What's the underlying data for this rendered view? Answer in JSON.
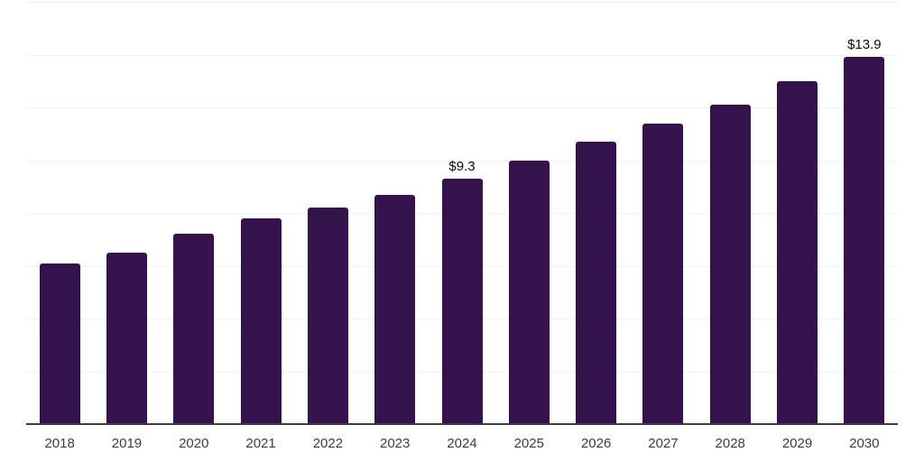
{
  "chart_data": {
    "type": "bar",
    "title": "",
    "xlabel": "",
    "ylabel": "",
    "categories": [
      "2018",
      "2019",
      "2020",
      "2021",
      "2022",
      "2023",
      "2024",
      "2025",
      "2026",
      "2027",
      "2028",
      "2029",
      "2030"
    ],
    "values": [
      6.1,
      6.5,
      7.2,
      7.8,
      8.2,
      8.7,
      9.3,
      10.0,
      10.7,
      11.4,
      12.1,
      13.0,
      13.9
    ],
    "value_labels": [
      "",
      "",
      "",
      "",
      "",
      "",
      "$9.3",
      "",
      "",
      "",
      "",
      "",
      "$13.9"
    ],
    "ylim": [
      0,
      16
    ],
    "gridline_step": 2,
    "grid": true,
    "legend": false,
    "y_axis_labels_visible": false,
    "colors": {
      "bar": "#35124E",
      "gridline": "#F1F1F1",
      "axis_line": "#3C3C3C",
      "tick_label": "#3D3D3D",
      "data_label": "#0B0B0B",
      "background": "#FFFFFF"
    }
  }
}
